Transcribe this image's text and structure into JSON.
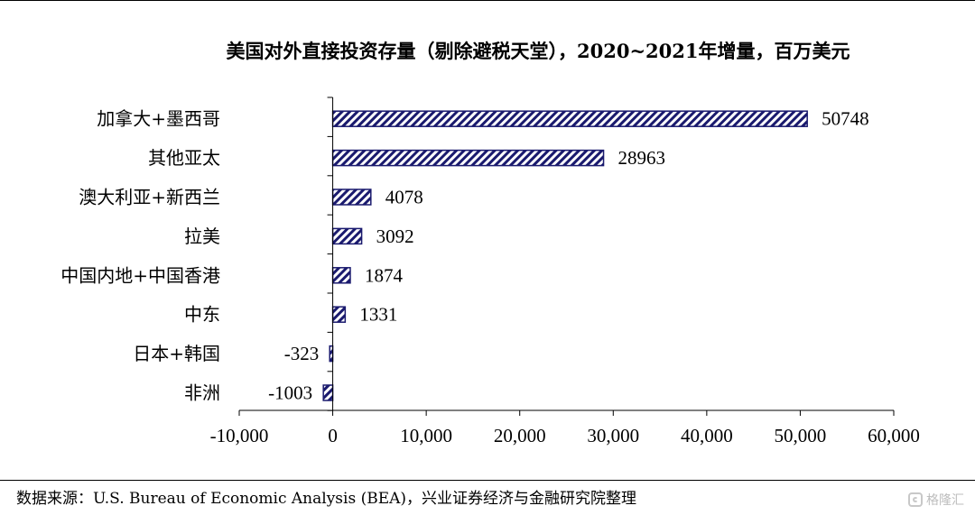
{
  "chart_data": {
    "type": "bar",
    "orientation": "horizontal",
    "title": "美国对外直接投资存量（剔除避税天堂），2020~2021年增量，百万美元",
    "categories": [
      "加拿大+墨西哥",
      "其他亚太",
      "澳大利亚+新西兰",
      "拉美",
      "中国内地+中国香港",
      "中东",
      "日本+韩国",
      "非洲"
    ],
    "values": [
      50748,
      28963,
      4078,
      3092,
      1874,
      1331,
      -323,
      -1003
    ],
    "value_labels": [
      "50748",
      "28963",
      "4078",
      "3092",
      "1874",
      "1331",
      "-323",
      "-1003"
    ],
    "xlim": [
      -10000,
      60000
    ],
    "xticks": [
      -10000,
      0,
      10000,
      20000,
      30000,
      40000,
      50000,
      60000
    ],
    "xtick_labels": [
      "-10,000",
      "0",
      "10,000",
      "20,000",
      "30,000",
      "40,000",
      "50,000",
      "60,000"
    ],
    "xlabel": "",
    "ylabel": "",
    "grid": false,
    "legend": "none",
    "bar_color": "#1a1a6e",
    "bar_pattern": "diagonal-hatch"
  },
  "source": "数据来源：U.S. Bureau of Economic Analysis (BEA)，兴业证券经济与金融研究院整理",
  "watermark": {
    "text": "格隆汇",
    "icon": "gelonghui-logo-icon"
  }
}
